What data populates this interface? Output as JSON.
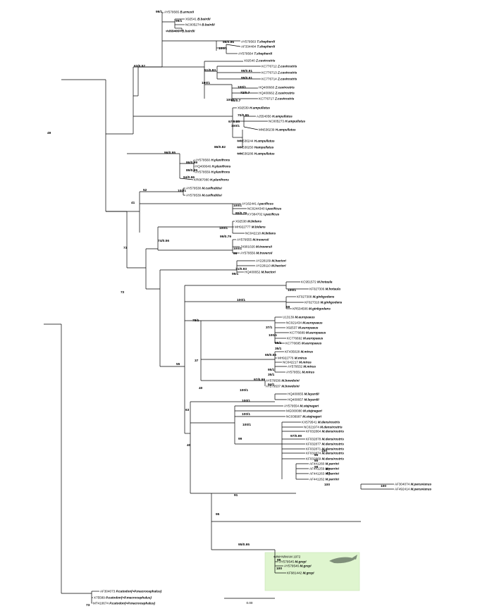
{
  "figure": {
    "kind": "phylogenetic tree",
    "highlight_color": "#dff5cf"
  },
  "tips": [
    {
      "acc": "AY579565",
      "sp": "B.arnuxii"
    },
    {
      "acc": "X92541",
      "sp": "B.bairdii"
    },
    {
      "acc": "NC005274",
      "sp": "B.bairdii"
    },
    {
      "acc": "AJ554057",
      "sp": "B.bairdii"
    },
    {
      "acc": "AY579563",
      "sp": "T.shepherdi"
    },
    {
      "acc": "AF334484",
      "sp": "T.shepherdi"
    },
    {
      "acc": "AY579564",
      "sp": "T.shepherdi"
    },
    {
      "acc": "X92540",
      "sp": "Z.cavirostris"
    },
    {
      "acc": "KC776712",
      "sp": "Z.cavirostris"
    },
    {
      "acc": "KC776713",
      "sp": "Z.cavirostris"
    },
    {
      "acc": "KC776714",
      "sp": "Z.cavirostris"
    },
    {
      "acc": "HQ400660",
      "sp": "Z.cavirostris"
    },
    {
      "acc": "HQ400662",
      "sp": "Z.cavirostris"
    },
    {
      "acc": "KC776717",
      "sp": "Z.cavirostris"
    },
    {
      "acc": "X92539",
      "sp": "H.ampullatus"
    },
    {
      "acc": "AJ554056",
      "sp": "H.ampullatus"
    },
    {
      "acc": "NC005273",
      "sp": "H.ampullatus"
    },
    {
      "acc": "MN536239",
      "sp": "H.ampullatus"
    },
    {
      "acc": "MN536244",
      "sp": "H.ampullatus"
    },
    {
      "acc": "MN536250",
      "sp": "Hampullatus"
    },
    {
      "acc": "MN536286",
      "sp": "H.ampullatus"
    },
    {
      "acc": "AY579560",
      "sp": "H.planifrons"
    },
    {
      "acc": "HQ400646",
      "sp": "H.planifrons"
    },
    {
      "acc": "AY579559",
      "sp": "H.planifrons"
    },
    {
      "acc": "KR087080",
      "sp": "H.planifrons"
    },
    {
      "acc": "AY579538",
      "sp": "M.carlhubbsi"
    },
    {
      "acc": "AY579539",
      "sp": "M.carlhubbsi"
    },
    {
      "acc": "AY162441",
      "sp": "I.pacificus"
    },
    {
      "acc": "NC0244340",
      "sp": "I.pacificus"
    },
    {
      "acc": "KY384702",
      "sp": "I.pacificus"
    },
    {
      "acc": "X92538",
      "sp": "M.bidens"
    },
    {
      "acc": "MH922777",
      "sp": "M.bidens"
    },
    {
      "acc": "NC042218",
      "sp": "M.bidens"
    },
    {
      "acc": "AY579555",
      "sp": "M.traversii"
    },
    {
      "acc": "JX901026",
      "sp": "M.traversii"
    },
    {
      "acc": "AY579556",
      "sp": "M.traversii"
    },
    {
      "acc": "AY228109",
      "sp": "M.hectori"
    },
    {
      "acc": "AY228110",
      "sp": "M.hectori"
    },
    {
      "acc": "HQ400652",
      "sp": "M.hectori"
    },
    {
      "acc": "KC951572",
      "sp": "M.hotaula"
    },
    {
      "acc": "KF027306",
      "sp": "M.hotaula"
    },
    {
      "acc": "KF027308",
      "sp": "M.ginkgodens"
    },
    {
      "acc": "KF027310",
      "sp": "M.ginkgodens"
    },
    {
      "acc": "KR534506",
      "sp": "M.ginkgodens"
    },
    {
      "acc": "U13139",
      "sp": "M.europaeus"
    },
    {
      "acc": "NC021434",
      "sp": "M.europaeus"
    },
    {
      "acc": "X92537",
      "sp": "M.europaeus"
    },
    {
      "acc": "KC776689",
      "sp": "M.europaeus"
    },
    {
      "acc": "KC776692",
      "sp": "M.europaeus"
    },
    {
      "acc": "KC776695",
      "sp": "M.europaeus"
    },
    {
      "acc": "KF435028",
      "sp": "M.mirus"
    },
    {
      "acc": "MH922776",
      "sp": "M.mirus"
    },
    {
      "acc": "NC042217",
      "sp": "M.mirus"
    },
    {
      "acc": "AY579532",
      "sp": "M.mirus"
    },
    {
      "acc": "AY579551",
      "sp": "M.mirus"
    },
    {
      "acc": "AY579536",
      "sp": "M.bowdoini"
    },
    {
      "acc": "AY579537",
      "sp": "M.bowdoini"
    },
    {
      "acc": "HQ400655",
      "sp": "M.layardii"
    },
    {
      "acc": "HQ400657",
      "sp": "M.layardii"
    },
    {
      "acc": "AY579554",
      "sp": "M.stejnegeri"
    },
    {
      "acc": "MG000080",
      "sp": "M.stejnegeri"
    },
    {
      "acc": "NC036997",
      "sp": "M.stejnegeri"
    },
    {
      "acc": "KX579541",
      "sp": "M.densirostris"
    },
    {
      "acc": "NC021974",
      "sp": "M.densirostris"
    },
    {
      "acc": "KF032864",
      "sp": "M.densirostris"
    },
    {
      "acc": "KF032878",
      "sp": "M.densirostris"
    },
    {
      "acc": "KF032877",
      "sp": "M.densirostris"
    },
    {
      "acc": "KF032871",
      "sp": "M.densirostris"
    },
    {
      "acc": "KF032874",
      "sp": "M.densirostris"
    },
    {
      "acc": "KF032869",
      "sp": "M.densirostris"
    },
    {
      "acc": "AF441260",
      "sp": "M.perrini"
    },
    {
      "acc": "AF441259",
      "sp": "M.perrini"
    },
    {
      "acc": "AF441263",
      "sp": "M.perrini"
    },
    {
      "acc": "AF441262",
      "sp": "M.perrini"
    },
    {
      "acc": "AF304074",
      "sp": "M.peruvianus"
    },
    {
      "acc": "AF492414",
      "sp": "M.peruvianus"
    },
    {
      "acc": "MNHN/MAM 1972",
      "sp": ""
    },
    {
      "acc": "AY579545",
      "sp": "M.grayi"
    },
    {
      "acc": "AY579546",
      "sp": "M.grayi"
    },
    {
      "acc": "KF981442",
      "sp": "M.grayi"
    },
    {
      "acc": "AF304073",
      "sp": "P.catodon(=P.macrocephalus)"
    },
    {
      "acc": "X75589",
      "sp": "P.catodon(=P.macrocephalus)"
    },
    {
      "acc": "MT410674",
      "sp": "P.catodon(=P.macrocephalus)"
    }
  ],
  "supports": [
    "99/1",
    "99/1",
    "99/0.96",
    "100/1",
    "63/0.52",
    "51/0.83",
    "99/0.91",
    "99/0.91",
    "100/1",
    "100/1",
    "72/0.7",
    "81/0.7",
    "100/1",
    "49",
    "70/0.85",
    "97/0.85",
    "100/1",
    "86/0.82",
    "96/0.95",
    "86/0.99",
    "89/0.99",
    "94/0.96",
    "52",
    "100/1",
    "41",
    "100/1",
    "80/0.79",
    "100/1",
    "99/0.79",
    "74/0.56",
    "100/1",
    "99",
    "73",
    "71/0.93",
    "99/1",
    "72",
    "100/1",
    "100/1",
    "59",
    "78/1",
    "37/1",
    "100/1",
    "95/1",
    "35/1",
    "65/0.56",
    "37",
    "95/1",
    "35/1",
    "97/0.99",
    "94/1",
    "40",
    "100/1",
    "55",
    "63",
    "100/1",
    "100/1",
    "100/1",
    "99",
    "97/0.99",
    "100",
    "85",
    "85",
    "99",
    "40",
    "97",
    "47",
    "100",
    "91",
    "100",
    "95",
    "99",
    "95/0.95",
    "100",
    "73"
  ],
  "scale": {
    "label": "0.00"
  }
}
